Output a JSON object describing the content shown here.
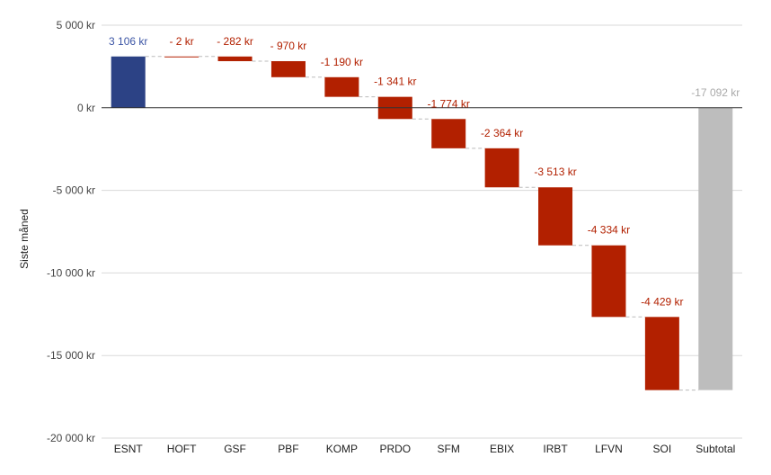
{
  "chart_data": {
    "type": "bar",
    "subtype": "waterfall",
    "ylabel": "Siste måned",
    "ylim": [
      -20000,
      5000
    ],
    "yticks": [
      5000,
      0,
      -5000,
      -10000,
      -15000,
      -20000
    ],
    "ytick_labels": [
      "5 000 kr",
      "0 kr",
      "-5 000 kr",
      "-10 000 kr",
      "-15 000 kr",
      "-20 000 kr"
    ],
    "grid": true,
    "categories": [
      "ESNT",
      "HOFT",
      "GSF",
      "PBF",
      "KOMP",
      "PRDO",
      "SFM",
      "EBIX",
      "IRBT",
      "LFVN",
      "SOI",
      "Subtotal"
    ],
    "values": [
      3106,
      -2,
      -282,
      -970,
      -1190,
      -1341,
      -1774,
      -2364,
      -3513,
      -4334,
      -4429,
      -17092
    ],
    "value_labels": [
      "3 106 kr",
      "- 2 kr",
      "- 282 kr",
      "- 970 kr",
      "-1 190 kr",
      "-1 341 kr",
      "-1 774 kr",
      "-2 364 kr",
      "-3 513 kr",
      "-4 334 kr",
      "-4 429 kr",
      "-17 092 kr"
    ],
    "kinds": [
      "increase",
      "decrease",
      "decrease",
      "decrease",
      "decrease",
      "decrease",
      "decrease",
      "decrease",
      "decrease",
      "decrease",
      "decrease",
      "total"
    ],
    "colors": {
      "increase": "#2c4285",
      "decrease": "#b22000",
      "total": "#bdbdbd",
      "increase_label": "#3c55a5",
      "decrease_label": "#b22000",
      "total_label": "#aaaaaa",
      "grid": "#d9d9d9",
      "zero_line": "#333333",
      "connector": "#bbbbbb"
    }
  }
}
